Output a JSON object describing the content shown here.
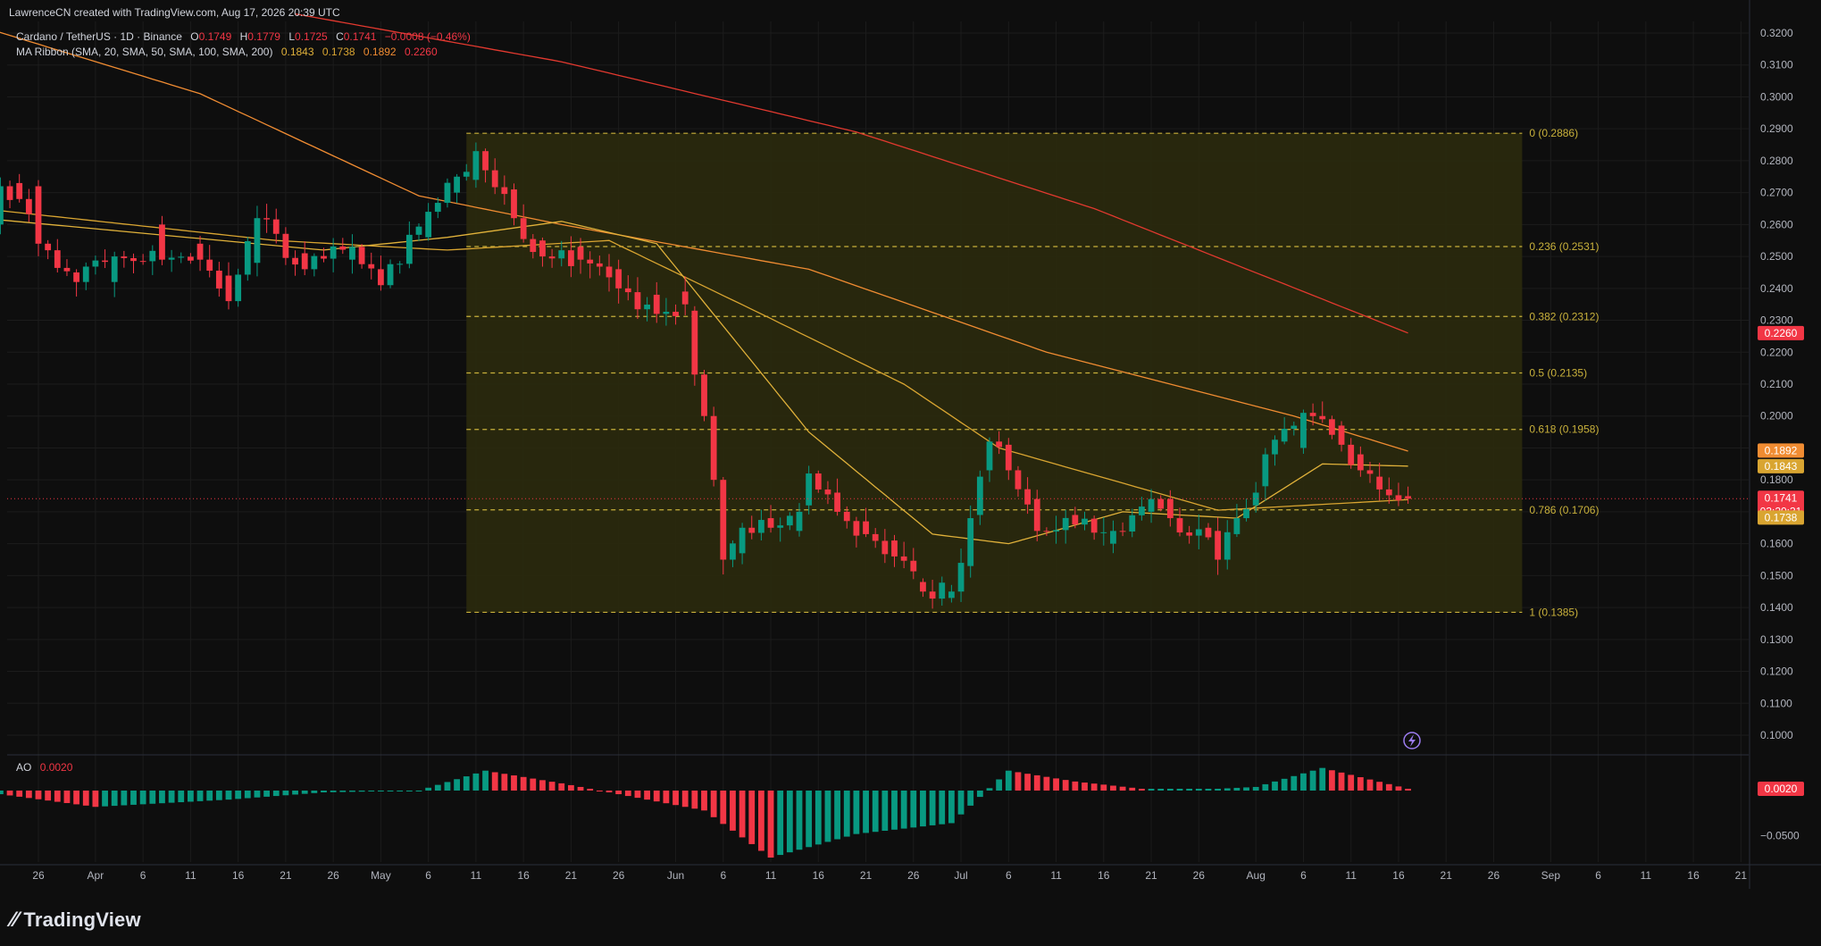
{
  "header": {
    "watermark": "LawrenceCN created with TradingView.com, Aug 17, 2026 20:39 UTC",
    "symbol": "Cardano / TetherUS · 1D · Binance",
    "ohlc": {
      "o_label": "O",
      "o": "0.1749",
      "h_label": "H",
      "h": "0.1779",
      "l_label": "L",
      "l": "0.1725",
      "c_label": "C",
      "c": "0.1741",
      "chg": "−0.0008 (−0.46%)"
    },
    "ma_ribbon": {
      "label": "MA Ribbon (SMA, 20, SMA, 50, SMA, 100, SMA, 200)",
      "v20": "0.1843",
      "v50": "0.1738",
      "v100": "0.1892",
      "v200": "0.2260"
    }
  },
  "ao": {
    "label": "AO",
    "value": "0.0020",
    "axis_tick": "−0.0500",
    "badge": "0.0020"
  },
  "footer": {
    "brand": "TradingView"
  },
  "colors": {
    "bg": "#0e0e0e",
    "up": "#089981",
    "down": "#f23645",
    "fib_fill": "#2b2a0d",
    "fib_line": "#c9b13b",
    "sma20": "#e0b13a",
    "sma50": "#d9a531",
    "sma100": "#f08c32",
    "sma200": "#e2392f",
    "grid": "#1c1c1c",
    "text": "#b2b5be"
  },
  "chart_data": {
    "type": "candlestick",
    "y_axis_ticks": [
      "0.3200",
      "0.3100",
      "0.3000",
      "0.2900",
      "0.2800",
      "0.2700",
      "0.2600",
      "0.2500",
      "0.2400",
      "0.2300",
      "0.2200",
      "0.2100",
      "0.2000",
      "0.1900",
      "0.1800",
      "0.1700",
      "0.1600",
      "0.1500",
      "0.1400",
      "0.1300",
      "0.1200",
      "0.1100",
      "0.1000"
    ],
    "ylim": [
      0.0953,
      0.3242
    ],
    "x_axis_ticks": [
      {
        "label": "26",
        "date": "2026-03-26"
      },
      {
        "label": "Apr",
        "date": "2026-04-01"
      },
      {
        "label": "6",
        "date": "2026-04-06"
      },
      {
        "label": "11",
        "date": "2026-04-11"
      },
      {
        "label": "16",
        "date": "2026-04-16"
      },
      {
        "label": "21",
        "date": "2026-04-21"
      },
      {
        "label": "26",
        "date": "2026-04-26"
      },
      {
        "label": "May",
        "date": "2026-05-01"
      },
      {
        "label": "6",
        "date": "2026-05-06"
      },
      {
        "label": "11",
        "date": "2026-05-11"
      },
      {
        "label": "16",
        "date": "2026-05-16"
      },
      {
        "label": "21",
        "date": "2026-05-21"
      },
      {
        "label": "26",
        "date": "2026-05-26"
      },
      {
        "label": "Jun",
        "date": "2026-06-01"
      },
      {
        "label": "6",
        "date": "2026-06-06"
      },
      {
        "label": "11",
        "date": "2026-06-11"
      },
      {
        "label": "16",
        "date": "2026-06-16"
      },
      {
        "label": "21",
        "date": "2026-06-21"
      },
      {
        "label": "26",
        "date": "2026-06-26"
      },
      {
        "label": "Jul",
        "date": "2026-07-01"
      },
      {
        "label": "6",
        "date": "2026-07-06"
      },
      {
        "label": "11",
        "date": "2026-07-11"
      },
      {
        "label": "16",
        "date": "2026-07-16"
      },
      {
        "label": "21",
        "date": "2026-07-21"
      },
      {
        "label": "26",
        "date": "2026-07-26"
      },
      {
        "label": "Aug",
        "date": "2026-08-01"
      },
      {
        "label": "6",
        "date": "2026-08-06"
      },
      {
        "label": "11",
        "date": "2026-08-11"
      },
      {
        "label": "16",
        "date": "2026-08-16"
      },
      {
        "label": "21",
        "date": "2026-08-21"
      },
      {
        "label": "26",
        "date": "2026-08-26"
      },
      {
        "label": "Sep",
        "date": "2026-09-01"
      },
      {
        "label": "6",
        "date": "2026-09-06"
      },
      {
        "label": "11",
        "date": "2026-09-11"
      },
      {
        "label": "16",
        "date": "2026-09-16"
      },
      {
        "label": "21",
        "date": "2026-09-21"
      }
    ],
    "candle_keys": [
      {
        "date": "2026-03-22",
        "o": 0.26,
        "c": 0.272
      },
      {
        "date": "2026-03-24",
        "o": 0.273,
        "c": 0.268
      },
      {
        "date": "2026-03-26",
        "o": 0.272,
        "c": 0.254
      },
      {
        "date": "2026-03-30",
        "o": 0.245,
        "c": 0.242
      },
      {
        "date": "2026-04-03",
        "o": 0.242,
        "c": 0.25
      },
      {
        "date": "2026-04-08",
        "o": 0.26,
        "c": 0.249
      },
      {
        "date": "2026-04-12",
        "o": 0.254,
        "c": 0.249
      },
      {
        "date": "2026-04-15",
        "o": 0.244,
        "c": 0.236
      },
      {
        "date": "2026-04-18",
        "o": 0.248,
        "c": 0.262
      },
      {
        "date": "2026-04-23",
        "o": 0.251,
        "c": 0.246
      },
      {
        "date": "2026-04-28",
        "o": 0.249,
        "c": 0.253
      },
      {
        "date": "2026-05-01",
        "o": 0.246,
        "c": 0.241
      },
      {
        "date": "2026-05-06",
        "o": 0.256,
        "c": 0.264
      },
      {
        "date": "2026-05-09",
        "o": 0.27,
        "c": 0.275
      },
      {
        "date": "2026-05-11",
        "o": 0.274,
        "c": 0.283
      },
      {
        "date": "2026-05-12",
        "o": 0.283,
        "c": 0.277
      },
      {
        "date": "2026-05-15",
        "o": 0.271,
        "c": 0.262
      },
      {
        "date": "2026-05-18",
        "o": 0.255,
        "c": 0.25
      },
      {
        "date": "2026-05-22",
        "o": 0.253,
        "c": 0.249
      },
      {
        "date": "2026-05-26",
        "o": 0.246,
        "c": 0.24
      },
      {
        "date": "2026-05-30",
        "o": 0.238,
        "c": 0.232
      },
      {
        "date": "2026-06-02",
        "o": 0.239,
        "c": 0.235
      },
      {
        "date": "2026-06-03",
        "o": 0.233,
        "c": 0.213
      },
      {
        "date": "2026-06-04",
        "o": 0.213,
        "c": 0.2
      },
      {
        "date": "2026-06-05",
        "o": 0.2,
        "c": 0.18
      },
      {
        "date": "2026-06-06",
        "o": 0.18,
        "c": 0.155
      },
      {
        "date": "2026-06-08",
        "o": 0.157,
        "c": 0.165
      },
      {
        "date": "2026-06-11",
        "o": 0.168,
        "c": 0.165
      },
      {
        "date": "2026-06-14",
        "o": 0.164,
        "c": 0.17
      },
      {
        "date": "2026-06-15",
        "o": 0.172,
        "c": 0.182
      },
      {
        "date": "2026-06-18",
        "o": 0.176,
        "c": 0.17
      },
      {
        "date": "2026-06-21",
        "o": 0.167,
        "c": 0.163
      },
      {
        "date": "2026-06-24",
        "o": 0.161,
        "c": 0.156
      },
      {
        "date": "2026-06-27",
        "o": 0.148,
        "c": 0.145
      },
      {
        "date": "2026-06-30",
        "o": 0.143,
        "c": 0.145
      },
      {
        "date": "2026-07-01",
        "o": 0.145,
        "c": 0.154
      },
      {
        "date": "2026-07-02",
        "o": 0.153,
        "c": 0.168
      },
      {
        "date": "2026-07-03",
        "o": 0.169,
        "c": 0.181
      },
      {
        "date": "2026-07-04",
        "o": 0.183,
        "c": 0.192
      },
      {
        "date": "2026-07-06",
        "o": 0.191,
        "c": 0.183
      },
      {
        "date": "2026-07-09",
        "o": 0.174,
        "c": 0.164
      },
      {
        "date": "2026-07-13",
        "o": 0.169,
        "c": 0.166
      },
      {
        "date": "2026-07-17",
        "o": 0.16,
        "c": 0.164
      },
      {
        "date": "2026-07-21",
        "o": 0.17,
        "c": 0.174
      },
      {
        "date": "2026-07-23",
        "o": 0.174,
        "c": 0.168
      },
      {
        "date": "2026-07-27",
        "o": 0.165,
        "c": 0.162
      },
      {
        "date": "2026-07-28",
        "o": 0.164,
        "c": 0.155
      },
      {
        "date": "2026-07-30",
        "o": 0.163,
        "c": 0.168
      },
      {
        "date": "2026-08-01",
        "o": 0.172,
        "c": 0.176
      },
      {
        "date": "2026-08-02",
        "o": 0.178,
        "c": 0.188
      },
      {
        "date": "2026-08-04",
        "o": 0.192,
        "c": 0.196
      },
      {
        "date": "2026-08-06",
        "o": 0.19,
        "c": 0.201
      },
      {
        "date": "2026-08-08",
        "o": 0.2,
        "c": 0.199
      },
      {
        "date": "2026-08-10",
        "o": 0.197,
        "c": 0.191
      },
      {
        "date": "2026-08-12",
        "o": 0.188,
        "c": 0.183
      },
      {
        "date": "2026-08-14",
        "o": 0.181,
        "c": 0.177
      },
      {
        "date": "2026-08-17",
        "o": 0.1749,
        "h": 0.1779,
        "l": 0.1725,
        "c": 0.1741
      }
    ],
    "series": [
      {
        "name": "SMA 200",
        "points": [
          [
            "2026-04-22",
            0.326
          ],
          [
            "2026-05-20",
            0.311
          ],
          [
            "2026-06-20",
            0.289
          ],
          [
            "2026-07-15",
            0.265
          ],
          [
            "2026-08-17",
            0.226
          ]
        ]
      },
      {
        "name": "SMA 100",
        "points": [
          [
            "2026-03-20",
            0.322
          ],
          [
            "2026-04-12",
            0.301
          ],
          [
            "2026-05-05",
            0.269
          ],
          [
            "2026-05-20",
            0.26
          ],
          [
            "2026-06-15",
            0.246
          ],
          [
            "2026-07-10",
            0.22
          ],
          [
            "2026-08-05",
            0.2
          ],
          [
            "2026-08-17",
            0.189
          ]
        ]
      },
      {
        "name": "SMA 50",
        "points": [
          [
            "2026-03-20",
            0.265
          ],
          [
            "2026-04-20",
            0.255
          ],
          [
            "2026-05-08",
            0.252
          ],
          [
            "2026-05-25",
            0.255
          ],
          [
            "2026-06-10",
            0.232
          ],
          [
            "2026-06-25",
            0.21
          ],
          [
            "2026-07-05",
            0.19
          ],
          [
            "2026-07-28",
            0.1705
          ],
          [
            "2026-08-17",
            0.1738
          ]
        ]
      },
      {
        "name": "SMA 20",
        "points": [
          [
            "2026-03-20",
            0.262
          ],
          [
            "2026-04-25",
            0.252
          ],
          [
            "2026-05-08",
            0.256
          ],
          [
            "2026-05-20",
            0.261
          ],
          [
            "2026-05-30",
            0.254
          ],
          [
            "2026-06-15",
            0.195
          ],
          [
            "2026-06-28",
            0.163
          ],
          [
            "2026-07-06",
            0.16
          ],
          [
            "2026-07-18",
            0.17
          ],
          [
            "2026-07-30",
            0.168
          ],
          [
            "2026-08-08",
            0.185
          ],
          [
            "2026-08-17",
            0.1843
          ]
        ]
      }
    ],
    "fib": {
      "start": "2026-05-10",
      "end": "2026-08-29",
      "levels": [
        {
          "label": "0 (0.2886)",
          "value": 0.2886
        },
        {
          "label": "0.236 (0.2531)",
          "value": 0.2531
        },
        {
          "label": "0.382 (0.2312)",
          "value": 0.2312
        },
        {
          "label": "0.5 (0.2135)",
          "value": 0.2135
        },
        {
          "label": "0.618 (0.1958)",
          "value": 0.1958
        },
        {
          "label": "0.786 (0.1706)",
          "value": 0.1706
        },
        {
          "label": "1 (0.1385)",
          "value": 0.1385
        }
      ]
    },
    "price_badges": [
      {
        "text": "0.2260",
        "value": 0.226,
        "bg": "#f23645"
      },
      {
        "text": "0.1892",
        "value": 0.1892,
        "bg": "#f08c32"
      },
      {
        "text": "0.1843",
        "value": 0.1843,
        "bg": "#d9a531"
      },
      {
        "text": "0.1741",
        "value": 0.1741,
        "bg": "#f23645",
        "countdown": "03:20:31"
      },
      {
        "text": "0.1738",
        "value": 0.1738,
        "bg": "#d9a531"
      }
    ],
    "ao_keys": [
      [
        "2026-03-22",
        -0.004
      ],
      [
        "2026-04-01",
        -0.018
      ],
      [
        "2026-04-15",
        -0.01
      ],
      [
        "2026-04-25",
        -0.002
      ],
      [
        "2026-05-05",
        0.0
      ],
      [
        "2026-05-12",
        0.022
      ],
      [
        "2026-05-20",
        0.008
      ],
      [
        "2026-05-28",
        -0.008
      ],
      [
        "2026-06-04",
        -0.022
      ],
      [
        "2026-06-11",
        -0.074
      ],
      [
        "2026-06-20",
        -0.048
      ],
      [
        "2026-06-30",
        -0.036
      ],
      [
        "2026-07-06",
        0.022
      ],
      [
        "2026-07-13",
        0.01
      ],
      [
        "2026-07-20",
        0.002
      ],
      [
        "2026-07-28",
        0.002
      ],
      [
        "2026-08-01",
        0.004
      ],
      [
        "2026-08-08",
        0.025
      ],
      [
        "2026-08-17",
        0.002
      ]
    ],
    "ao_ylim": [
      -0.076,
      0.026
    ]
  }
}
